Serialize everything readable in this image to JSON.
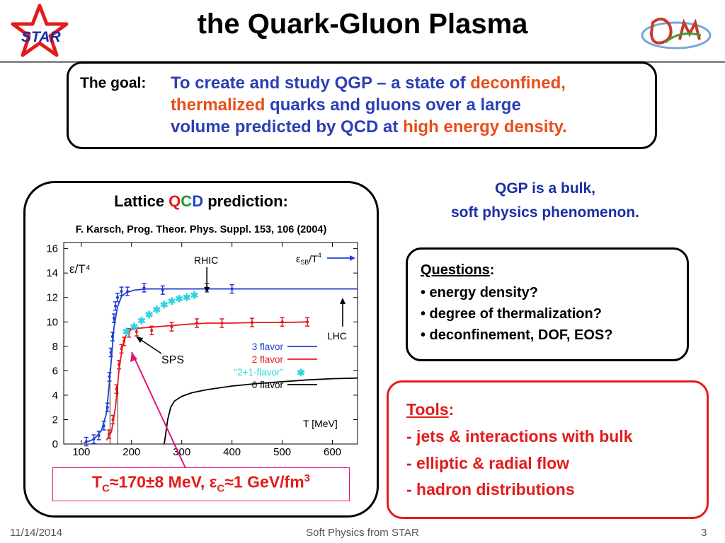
{
  "slide": {
    "title": "the Quark-Gluon Plasma",
    "logo_star_text": "STAR",
    "goal": {
      "label": "The goal:",
      "line1_a": "To create and study QGP – a state of ",
      "line1_b": "deconfined",
      "line1_c": ",",
      "line2_a": "thermalized",
      "line2_b": " quarks and gluons over a large",
      "line3_a": "volume predicted by QCD at ",
      "line3_b": "high energy density",
      "line3_c": "."
    },
    "bulk": {
      "line1": "QGP is a bulk,",
      "line2": "soft physics phenomenon."
    },
    "questions": {
      "title": "Questions",
      "title_suffix": ":",
      "items": [
        "•  energy density?",
        "•  degree of thermalization?",
        "•  deconfinement, DOF, EOS?"
      ]
    },
    "tools": {
      "title": "Tools",
      "title_suffix": ":",
      "items": [
        "-  jets & interactions with bulk",
        "-  elliptic & radial flow",
        "-  hadron distributions"
      ]
    },
    "lattice": {
      "title_a": "Lattice ",
      "title_q": "Q",
      "title_c": "C",
      "title_d": "D",
      "title_b": " prediction:",
      "reference": "F. Karsch, Prog. Theor. Phys. Suppl. 153, 106 (2004)"
    },
    "tc": {
      "t": "T",
      "t_sub": "C",
      "approx1": "≈170±8 MeV, ",
      "eps": "ε",
      "eps_sub": "C",
      "approx2": "≈1 GeV/fm",
      "sup": "3"
    },
    "footer": {
      "date": "11/14/2014",
      "center": "Soft Physics from STAR",
      "page": "3"
    },
    "colors": {
      "blue_text": "#2b3fb5",
      "orange": "#e94e1b",
      "red": "#e31b1b",
      "magenta": "#e2157a"
    }
  },
  "chart_data": {
    "type": "line",
    "xlabel": "T [MeV]",
    "ylabel": "ε/T⁴",
    "xlim": [
      65,
      650
    ],
    "ylim": [
      0,
      16.5
    ],
    "xticks": [
      100,
      200,
      300,
      400,
      500,
      600
    ],
    "yticks": [
      0,
      2,
      4,
      6,
      8,
      10,
      12,
      14,
      16
    ],
    "annotations": {
      "rhic": "RHIC",
      "lhc": "LHC",
      "sps": "SPS",
      "sb": "ε",
      "sb_sub": "SB",
      "sb_rest": "/T",
      "sb_sup": "4"
    },
    "series": [
      {
        "name": "3 flavor",
        "color": "#1f3fd6",
        "x": [
          105,
          120,
          130,
          140,
          150,
          158,
          165,
          172,
          180,
          190,
          205,
          230,
          260,
          300,
          350,
          400,
          450,
          500,
          550,
          600,
          650
        ],
        "y": [
          0.1,
          0.3,
          0.6,
          1.1,
          2.5,
          6.0,
          9.5,
          11.2,
          12.1,
          12.4,
          12.6,
          12.7,
          12.7,
          12.7,
          12.7,
          12.7,
          12.7,
          12.7,
          12.7,
          12.7,
          12.7
        ],
        "errors_x": [
          110,
          125,
          135,
          145,
          152,
          156,
          159,
          162,
          165,
          168,
          172,
          180,
          192,
          225,
          262,
          350,
          400
        ],
        "errors_y": [
          0.2,
          0.4,
          0.7,
          1.5,
          3.0,
          5.5,
          7.5,
          8.8,
          10.3,
          11.3,
          12.0,
          12.5,
          12.5,
          12.8,
          12.6,
          12.8,
          12.7
        ]
      },
      {
        "name": "2 flavor",
        "color": "#e31b1b",
        "x": [
          150,
          160,
          168,
          175,
          182,
          190,
          200,
          220,
          250,
          280,
          310,
          350,
          400,
          450,
          500,
          550
        ],
        "y": [
          0.3,
          1.0,
          3.0,
          6.0,
          8.0,
          9.0,
          9.4,
          9.5,
          9.6,
          9.7,
          9.8,
          9.9,
          9.9,
          9.95,
          9.95,
          10.0
        ],
        "errors_x": [
          155,
          163,
          170,
          175,
          180,
          185,
          195,
          210,
          240,
          280,
          330,
          380,
          440,
          500,
          550
        ],
        "errors_y": [
          0.8,
          2.0,
          4.5,
          6.5,
          7.8,
          8.4,
          9.1,
          9.2,
          9.3,
          9.6,
          9.9,
          9.9,
          9.95,
          10.0,
          10.0
        ]
      },
      {
        "name": "“2+1-flavor”",
        "color": "#2ad4e0",
        "marker": "star",
        "x": [
          190,
          205,
          220,
          235,
          250,
          265,
          280,
          295,
          310,
          325
        ],
        "y": [
          9.2,
          9.6,
          10.1,
          10.6,
          11.0,
          11.4,
          11.7,
          11.9,
          12.0,
          12.2
        ]
      },
      {
        "name": "0 flavor",
        "color": "#000000",
        "x": [
          265,
          268,
          272,
          278,
          285,
          300,
          320,
          350,
          400,
          450,
          500,
          550,
          600,
          650
        ],
        "y": [
          0.0,
          0.8,
          2.0,
          3.0,
          3.5,
          3.9,
          4.2,
          4.45,
          4.75,
          4.95,
          5.1,
          5.25,
          5.35,
          5.4
        ]
      }
    ]
  }
}
